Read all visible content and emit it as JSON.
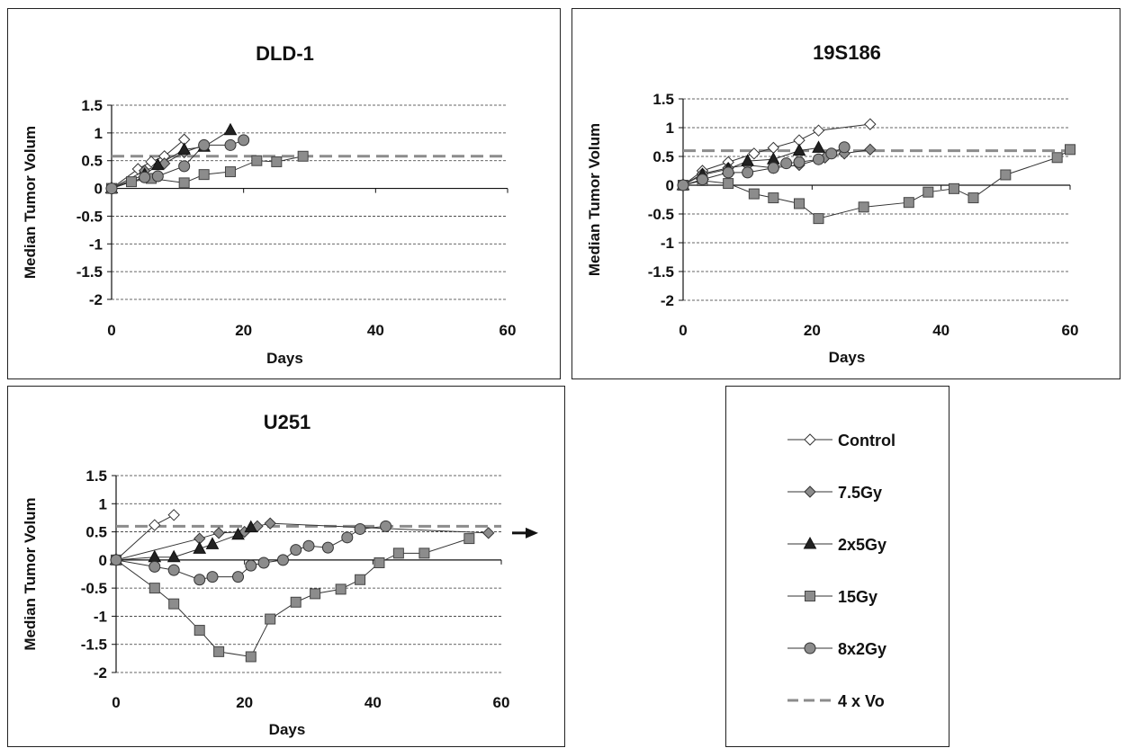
{
  "chart_data": [
    {
      "type": "line",
      "title": "DLD-1",
      "xlabel": "Days",
      "ylabel": "Median Tumor Volum",
      "xlim": [
        0,
        60
      ],
      "ylim": [
        -2,
        1.5
      ],
      "xticks": [
        "0",
        "20",
        "40",
        "60"
      ],
      "yticks": [
        "1.5",
        "1",
        "0.5",
        "0",
        "-0.5",
        "-1",
        "-1.5",
        "-2"
      ],
      "threshold": 0.58,
      "series": [
        {
          "name": "Control",
          "marker": "diamond-open",
          "x": [
            0,
            4,
            6,
            8,
            11
          ],
          "y": [
            0,
            0.35,
            0.48,
            0.58,
            0.88
          ]
        },
        {
          "name": "7.5Gy",
          "marker": "diamond-filled",
          "x": [
            0,
            5,
            8,
            11,
            14
          ],
          "y": [
            0,
            0.32,
            0.45,
            0.65,
            0.78
          ]
        },
        {
          "name": "2x5Gy",
          "marker": "triangle",
          "x": [
            0,
            5,
            7,
            11,
            14,
            18
          ],
          "y": [
            0,
            0.25,
            0.42,
            0.7,
            0.75,
            1.05
          ]
        },
        {
          "name": "15Gy",
          "marker": "square",
          "x": [
            0,
            3,
            6,
            11,
            14,
            18,
            22,
            25,
            29
          ],
          "y": [
            0,
            0.12,
            0.18,
            0.1,
            0.25,
            0.3,
            0.5,
            0.48,
            0.58
          ]
        },
        {
          "name": "8x2Gy",
          "marker": "circle",
          "x": [
            0,
            5,
            7,
            11,
            14,
            18,
            20
          ],
          "y": [
            0,
            0.2,
            0.22,
            0.4,
            0.78,
            0.78,
            0.87
          ]
        }
      ]
    },
    {
      "type": "line",
      "title": "19S186",
      "xlabel": "Days",
      "ylabel": "Median Tumor Volum",
      "xlim": [
        0,
        60
      ],
      "ylim": [
        -2,
        1.5
      ],
      "xticks": [
        "0",
        "20",
        "40",
        "60"
      ],
      "yticks": [
        "1.5",
        "1",
        "0.5",
        "0",
        "-0.5",
        "-1",
        "-1.5",
        "-2"
      ],
      "threshold": 0.6,
      "series": [
        {
          "name": "Control",
          "marker": "diamond-open",
          "x": [
            0,
            3,
            7,
            11,
            14,
            18,
            21,
            29
          ],
          "y": [
            0,
            0.25,
            0.4,
            0.55,
            0.65,
            0.78,
            0.95,
            1.06
          ]
        },
        {
          "name": "7.5Gy",
          "marker": "diamond-filled",
          "x": [
            0,
            3,
            7,
            10,
            14,
            18,
            22,
            25,
            29
          ],
          "y": [
            0,
            0.2,
            0.3,
            0.35,
            0.3,
            0.35,
            0.48,
            0.55,
            0.62
          ]
        },
        {
          "name": "2x5Gy",
          "marker": "triangle",
          "x": [
            0,
            3,
            7,
            10,
            14,
            18,
            21
          ],
          "y": [
            0,
            0.18,
            0.28,
            0.42,
            0.45,
            0.6,
            0.65
          ]
        },
        {
          "name": "15Gy",
          "marker": "square",
          "x": [
            0,
            3,
            7,
            11,
            14,
            18,
            21,
            28,
            35,
            38,
            42,
            45,
            50,
            58,
            60
          ],
          "y": [
            0,
            0.08,
            0.03,
            -0.15,
            -0.22,
            -0.32,
            -0.58,
            -0.38,
            -0.3,
            -0.12,
            -0.06,
            -0.22,
            0.18,
            0.48,
            0.62
          ]
        },
        {
          "name": "8x2Gy",
          "marker": "circle",
          "x": [
            0,
            3,
            7,
            10,
            14,
            16,
            18,
            21,
            23,
            25
          ],
          "y": [
            0,
            0.1,
            0.22,
            0.22,
            0.3,
            0.38,
            0.4,
            0.45,
            0.55,
            0.66
          ]
        }
      ]
    },
    {
      "type": "line",
      "title": "U251",
      "xlabel": "Days",
      "ylabel": "Median Tumor Volum",
      "xlim": [
        0,
        60
      ],
      "ylim": [
        -2,
        1.5
      ],
      "xticks": [
        "0",
        "20",
        "40",
        "60"
      ],
      "yticks": [
        "1.5",
        "1",
        "0.5",
        "0",
        "-0.5",
        "-1",
        "-1.5",
        "-2"
      ],
      "threshold": 0.6,
      "series": [
        {
          "name": "Control",
          "marker": "diamond-open",
          "x": [
            0,
            6,
            9
          ],
          "y": [
            0,
            0.62,
            0.8
          ]
        },
        {
          "name": "7.5Gy",
          "marker": "diamond-filled",
          "x": [
            0,
            13,
            16,
            20,
            22,
            24,
            58
          ],
          "y": [
            0,
            0.38,
            0.48,
            0.5,
            0.6,
            0.65,
            0.48
          ]
        },
        {
          "name": "2x5Gy",
          "marker": "triangle",
          "x": [
            0,
            6,
            9,
            13,
            15,
            19,
            21
          ],
          "y": [
            0,
            0.05,
            0.05,
            0.2,
            0.28,
            0.45,
            0.58
          ]
        },
        {
          "name": "15Gy",
          "marker": "square",
          "x": [
            0,
            6,
            9,
            13,
            16,
            21,
            24,
            28,
            31,
            35,
            38,
            41,
            44,
            48,
            55
          ],
          "y": [
            0,
            -0.5,
            -0.78,
            -1.25,
            -1.63,
            -1.72,
            -1.05,
            -0.75,
            -0.6,
            -0.52,
            -0.35,
            -0.05,
            0.12,
            0.12,
            0.38
          ]
        },
        {
          "name": "8x2Gy",
          "marker": "circle",
          "x": [
            0,
            6,
            9,
            13,
            15,
            19,
            21,
            23,
            26,
            28,
            30,
            33,
            36,
            38,
            42
          ],
          "y": [
            0,
            -0.12,
            -0.18,
            -0.35,
            -0.3,
            -0.3,
            -0.1,
            -0.05,
            0,
            0.18,
            0.25,
            0.22,
            0.4,
            0.55,
            0.6
          ]
        }
      ]
    }
  ],
  "legend": [
    {
      "label": "Control",
      "marker": "diamond-open",
      "line": "solid"
    },
    {
      "label": "7.5Gy",
      "marker": "diamond-filled",
      "line": "solid"
    },
    {
      "label": "2x5Gy",
      "marker": "triangle",
      "line": "solid"
    },
    {
      "label": "15Gy",
      "marker": "square",
      "line": "solid"
    },
    {
      "label": "8x2Gy",
      "marker": "circle",
      "line": "solid"
    },
    {
      "label": "4 x Vo",
      "marker": "none",
      "line": "dashed"
    }
  ],
  "colors": {
    "threshold": "#8c8c8c",
    "open_marker_fill": "#ffffff",
    "diamond_filled": "#8c8c8c",
    "triangle": "#222222",
    "square": "#8c8c8c",
    "circle": "#8c8c8c",
    "line": "#333333"
  }
}
